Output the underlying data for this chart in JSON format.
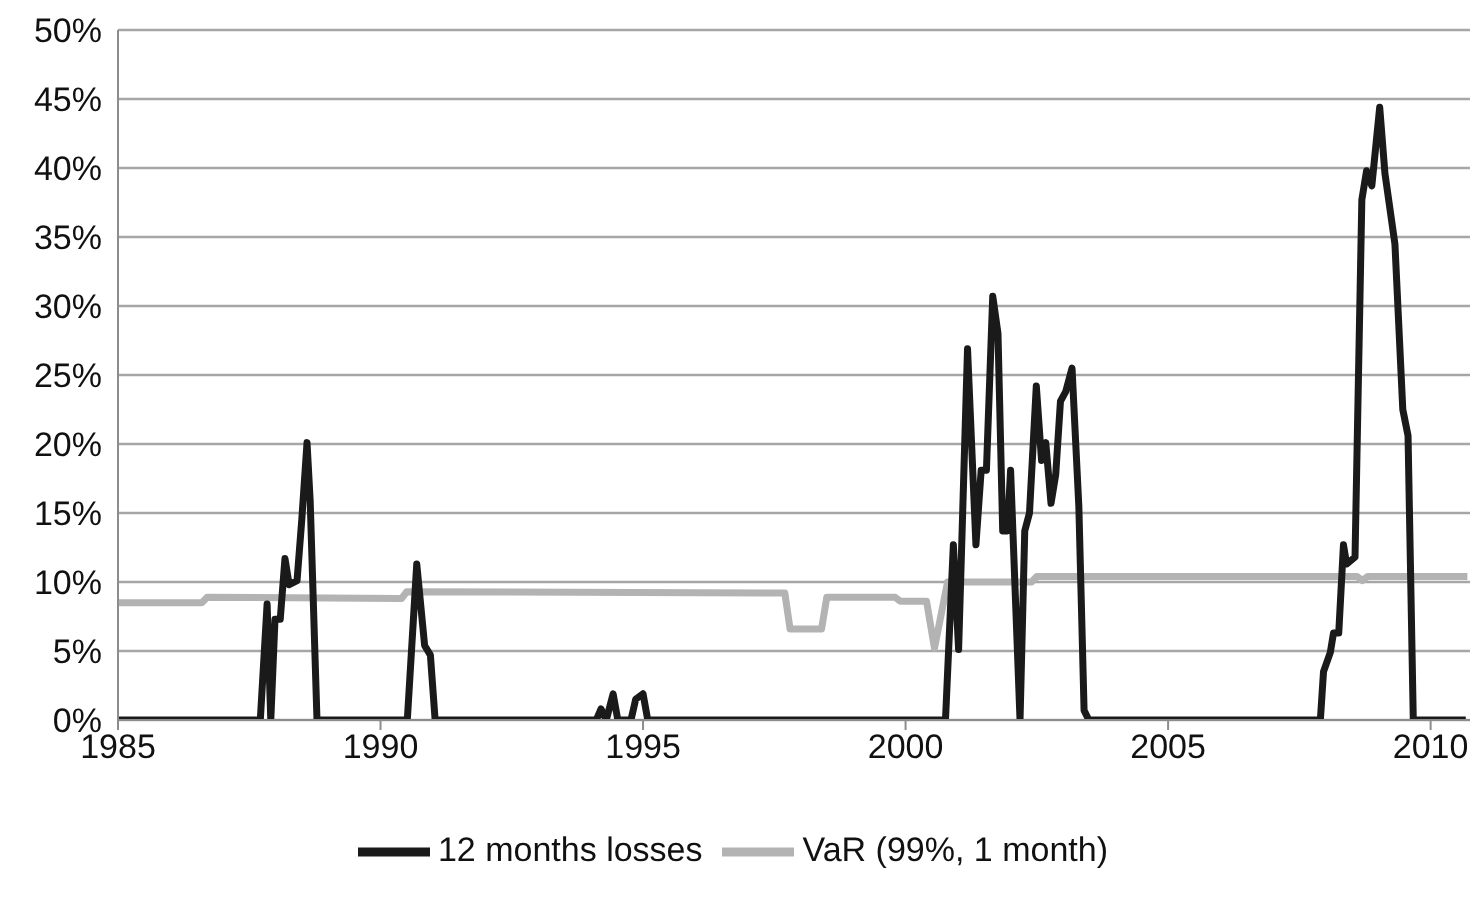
{
  "chart_data": {
    "type": "line",
    "xlim": [
      1985,
      2010.75
    ],
    "xticks": [
      1985,
      1990,
      1995,
      2000,
      2005,
      2010
    ],
    "ylim": [
      0,
      50
    ],
    "yticks": [
      {
        "value": 0,
        "label": "0%"
      },
      {
        "value": 5,
        "label": "5%"
      },
      {
        "value": 10,
        "label": "10%"
      },
      {
        "value": 15,
        "label": "15%"
      },
      {
        "value": 20,
        "label": "20%"
      },
      {
        "value": 25,
        "label": "25%"
      },
      {
        "value": 30,
        "label": "30%"
      },
      {
        "value": 35,
        "label": "35%"
      },
      {
        "value": 40,
        "label": "40%"
      },
      {
        "value": 45,
        "label": "45%"
      },
      {
        "value": 50,
        "label": "50%"
      }
    ],
    "grid": "y",
    "legend": "bottom",
    "marker": "none",
    "line_style": "solid",
    "series": [
      {
        "name": "VaR (99%, 1 month)",
        "color": "#b3b3b3",
        "x": [
          1985,
          1986.6,
          1986.7,
          1990.4,
          1990.5,
          1997.7,
          1997.8,
          1998.4,
          1998.5,
          1999.8,
          1999.9,
          2000.4,
          2000.55,
          2000.8,
          2002.4,
          2002.5,
          2008.6,
          2008.7,
          2008.8,
          2010.7
        ],
        "values": [
          8.5,
          8.5,
          8.9,
          8.8,
          9.3,
          9.2,
          6.6,
          6.6,
          8.9,
          8.9,
          8.6,
          8.6,
          5.2,
          10.0,
          10.0,
          10.4,
          10.4,
          10.1,
          10.4,
          10.4
        ]
      },
      {
        "name": "12 months losses",
        "color": "#1a1a1a",
        "x": [
          1985,
          1987.71,
          1987.84,
          1987.91,
          1987.99,
          1988.09,
          1988.18,
          1988.26,
          1988.41,
          1988.5,
          1988.6,
          1988.66,
          1988.79,
          1990.51,
          1990.69,
          1990.84,
          1990.95,
          1991.04,
          1994.11,
          1994.2,
          1994.3,
          1994.43,
          1994.52,
          1994.77,
          1994.86,
          1995.0,
          1995.09,
          2000.76,
          2000.91,
          2001.01,
          2001.18,
          2001.34,
          2001.44,
          2001.54,
          2001.66,
          2001.76,
          2001.85,
          2001.94,
          2002.0,
          2002.18,
          2002.27,
          2002.36,
          2002.49,
          2002.59,
          2002.67,
          2002.77,
          2002.86,
          2002.95,
          2003.05,
          2003.17,
          2003.3,
          2003.4,
          2003.49,
          2007.9,
          2007.96,
          2008.09,
          2008.15,
          2008.25,
          2008.34,
          2008.4,
          2008.56,
          2008.69,
          2008.78,
          2008.88,
          2009.03,
          2009.13,
          2009.32,
          2009.47,
          2009.57,
          2009.67,
          2010.67
        ],
        "values": [
          0,
          0,
          8.4,
          0,
          7.3,
          7.3,
          11.7,
          9.8,
          10.1,
          14.5,
          20.1,
          15.9,
          0,
          0,
          11.3,
          5.4,
          4.7,
          0,
          0,
          0.8,
          0,
          1.9,
          0,
          0,
          1.5,
          1.9,
          0,
          0,
          12.7,
          5.1,
          26.9,
          12.7,
          18.1,
          18.1,
          30.7,
          28,
          13.7,
          13.7,
          18.1,
          0,
          13.7,
          15,
          24.2,
          18.8,
          20.1,
          15.7,
          17.8,
          23.1,
          23.8,
          25.5,
          15.5,
          0.7,
          0,
          0,
          3.5,
          4.9,
          6.3,
          6.3,
          12.7,
          11.3,
          11.8,
          37.7,
          39.8,
          38.7,
          44.4,
          39.6,
          34.5,
          22.5,
          20.6,
          0,
          0
        ]
      }
    ]
  }
}
